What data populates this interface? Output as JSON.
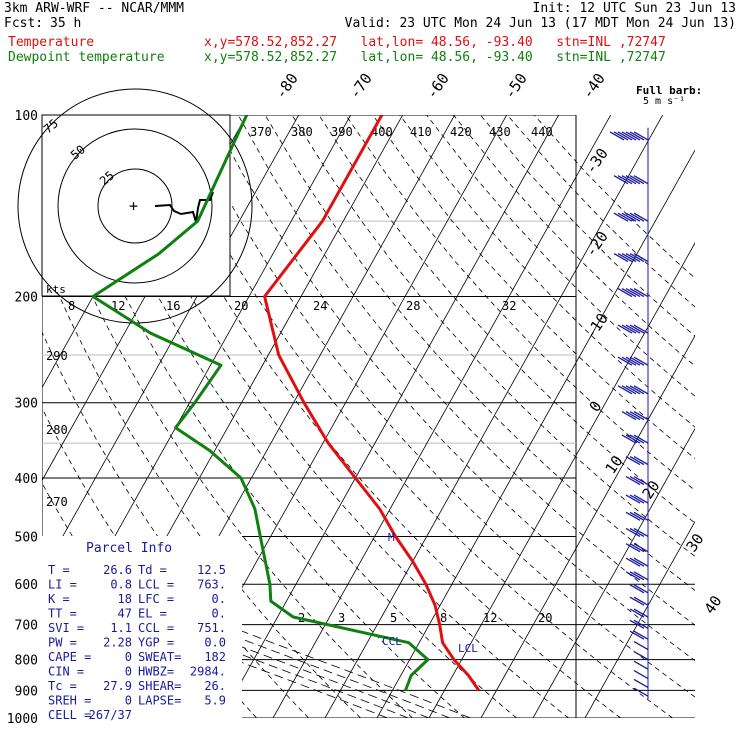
{
  "header": {
    "model": "3km ARW-WRF -- NCAR/MMM",
    "init": "Init: 12 UTC Sun 23 Jun 13",
    "fcst_label": "Fcst:",
    "fcst_value": "35 h",
    "valid": "Valid: 23 UTC Mon 24 Jun 13 (17 MDT Mon 24 Jun 13)",
    "temp_label": "Temperature",
    "temp_loc": "x,y=578.52,852.27   lat,lon= 48.56, -93.40   stn=INL ,72747",
    "dew_label": "Dewpoint temperature",
    "dew_loc": "x,y=578.52,852.27   lat,lon= 48.56, -93.40   stn=INL ,72747"
  },
  "colors": {
    "temperature": "#e01010",
    "dewpoint": "#108010",
    "wind": "#1a1aa0",
    "parcel": "#1a1aa0"
  },
  "barb_legend": {
    "line1": "Full barb:",
    "line2": "5 m s⁻¹"
  },
  "hodograph": {
    "ring_labels": [
      "75",
      "50",
      "25"
    ],
    "kts_label": "kts"
  },
  "parcel": {
    "title": "Parcel Info",
    "rows": [
      {
        "l": "T  =",
        "v": "26.6",
        "l2": "Td =",
        "v2": "12.5"
      },
      {
        "l": "LI =",
        "v": "0.8",
        "l2": "LCL =",
        "v2": "763."
      },
      {
        "l": "K  =",
        "v": "18",
        "l2": "LFC =",
        "v2": "0."
      },
      {
        "l": "TT =",
        "v": "47",
        "l2": "EL =",
        "v2": "0."
      },
      {
        "l": "SVI =",
        "v": "1.1",
        "l2": "CCL =",
        "v2": "751."
      },
      {
        "l": "PW =",
        "v": "2.28",
        "l2": "YGP =",
        "v2": "0.0"
      },
      {
        "l": "CAPE =",
        "v": "0",
        "l2": "SWEAT=",
        "v2": "182"
      },
      {
        "l": "CIN =",
        "v": "0",
        "l2": "HWBZ=",
        "v2": "2984."
      },
      {
        "l": "Tc =",
        "v": "27.9",
        "l2": "SHEAR=",
        "v2": "26."
      },
      {
        "l": "SREH =",
        "v": "0",
        "l2": "LAPSE=",
        "v2": "5.9"
      },
      {
        "l": "CELL =",
        "v": "267/37",
        "l2": "",
        "v2": ""
      }
    ]
  },
  "markers": {
    "lcl": "LCL",
    "ccl": "CCL",
    "m": "M"
  },
  "chart_data": {
    "type": "line",
    "diagram": "skew-T log-P",
    "pressure_axis": {
      "scale": "log",
      "range": [
        1000,
        100
      ],
      "ticks": [
        100,
        200,
        300,
        400,
        500,
        600,
        700,
        800,
        900,
        1000
      ]
    },
    "isotherm_labels": [
      "-80",
      "-70",
      "-60",
      "-50",
      "-40",
      "-30",
      "-20",
      "-10",
      "0",
      "10",
      "20",
      "30",
      "40"
    ],
    "theta_labels": [
      "370",
      "380",
      "390",
      "400",
      "410",
      "420",
      "430",
      "440",
      "290",
      "280",
      "270"
    ],
    "mixing_ratio_top": [
      "8",
      "12",
      "16",
      "20",
      "24",
      "28",
      "32"
    ],
    "mixing_ratio_bottom": [
      "2",
      "3",
      "5",
      "8",
      "12",
      "20"
    ],
    "series": [
      {
        "name": "Temperature",
        "points": [
          [
            100,
            -54
          ],
          [
            150,
            -54
          ],
          [
            200,
            -57
          ],
          [
            250,
            -48
          ],
          [
            300,
            -38
          ],
          [
            350,
            -29
          ],
          [
            400,
            -20
          ],
          [
            450,
            -12
          ],
          [
            500,
            -6
          ],
          [
            550,
            0
          ],
          [
            600,
            5
          ],
          [
            650,
            9
          ],
          [
            700,
            12
          ],
          [
            750,
            14.5
          ],
          [
            800,
            18.5
          ],
          [
            850,
            23
          ],
          [
            900,
            26.6
          ]
        ]
      },
      {
        "name": "Dewpoint temperature",
        "points": [
          [
            100,
            -80
          ],
          [
            150,
            -78
          ],
          [
            170,
            -82
          ],
          [
            200,
            -90
          ],
          [
            230,
            -75
          ],
          [
            260,
            -58
          ],
          [
            300,
            -59
          ],
          [
            330,
            -60
          ],
          [
            360,
            -51
          ],
          [
            400,
            -42
          ],
          [
            450,
            -36
          ],
          [
            500,
            -32
          ],
          [
            600,
            -25
          ],
          [
            640,
            -23
          ],
          [
            680,
            -17
          ],
          [
            750,
            8
          ],
          [
            800,
            13.5
          ],
          [
            850,
            12
          ],
          [
            900,
            12.5
          ]
        ]
      }
    ],
    "winds": [
      {
        "p": 110,
        "speed_ms": 35
      },
      {
        "p": 130,
        "speed_ms": 30
      },
      {
        "p": 150,
        "speed_ms": 30
      },
      {
        "p": 175,
        "speed_ms": 30
      },
      {
        "p": 200,
        "speed_ms": 25
      },
      {
        "p": 230,
        "speed_ms": 25
      },
      {
        "p": 260,
        "speed_ms": 25
      },
      {
        "p": 290,
        "speed_ms": 25
      },
      {
        "p": 320,
        "speed_ms": 20
      },
      {
        "p": 350,
        "speed_ms": 20
      },
      {
        "p": 380,
        "speed_ms": 15
      },
      {
        "p": 410,
        "speed_ms": 15
      },
      {
        "p": 440,
        "speed_ms": 15
      },
      {
        "p": 470,
        "speed_ms": 15
      },
      {
        "p": 500,
        "speed_ms": 15
      },
      {
        "p": 530,
        "speed_ms": 15
      },
      {
        "p": 560,
        "speed_ms": 15
      },
      {
        "p": 590,
        "speed_ms": 15
      },
      {
        "p": 620,
        "speed_ms": 10
      },
      {
        "p": 650,
        "speed_ms": 10
      },
      {
        "p": 680,
        "speed_ms": 10
      },
      {
        "p": 710,
        "speed_ms": 10
      },
      {
        "p": 740,
        "speed_ms": 10
      },
      {
        "p": 770,
        "speed_ms": 5
      },
      {
        "p": 800,
        "speed_ms": 5
      },
      {
        "p": 830,
        "speed_ms": 5
      },
      {
        "p": 860,
        "speed_ms": 5
      },
      {
        "p": 890,
        "speed_ms": 5
      },
      {
        "p": 920,
        "speed_ms": 5
      }
    ]
  }
}
